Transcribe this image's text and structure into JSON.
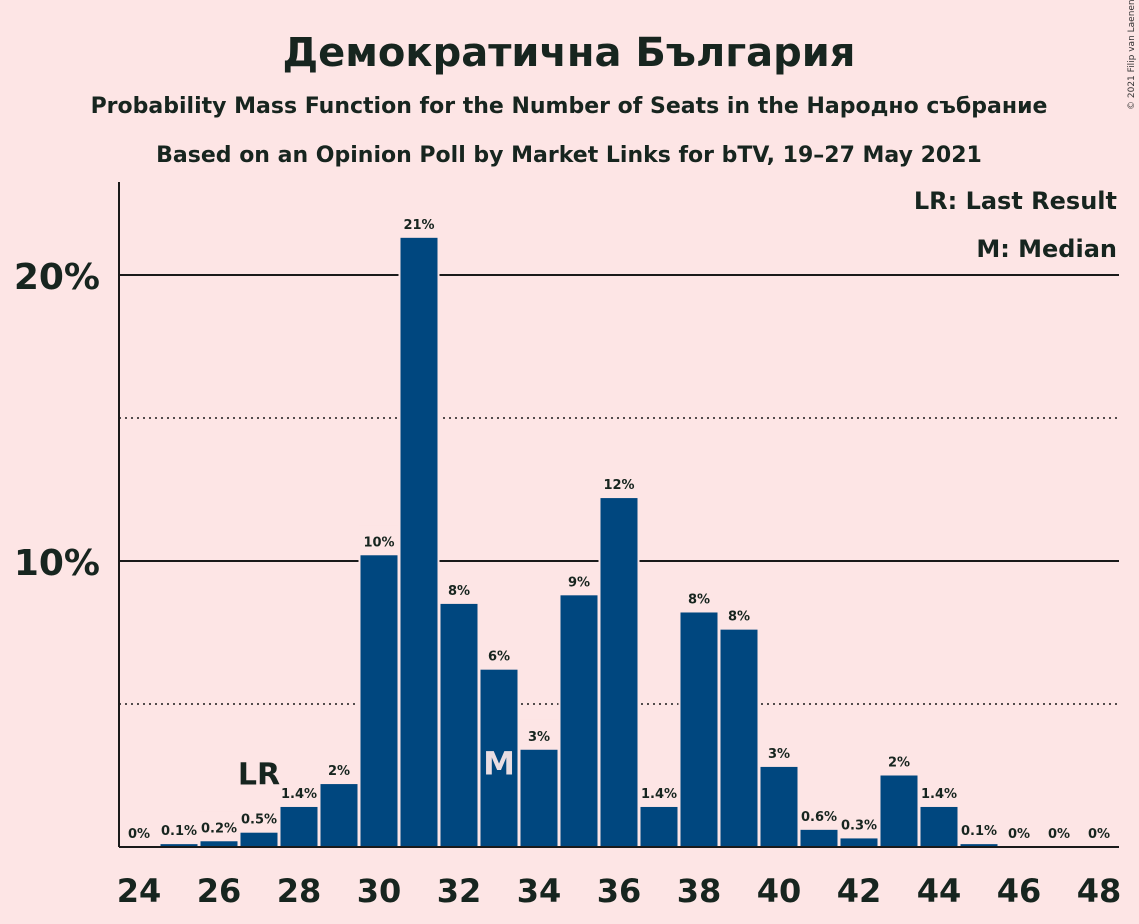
{
  "copyright": "© 2021 Filip van Laenen",
  "chart_data": {
    "type": "bar",
    "title": "Демократична България",
    "subtitle": "Probability Mass Function for the Number of Seats in the Народно събрание",
    "subtitle2": "Based on an Opinion Poll by Market Links for bTV, 19–27 May 2021",
    "x": [
      24,
      25,
      26,
      27,
      28,
      29,
      30,
      31,
      32,
      33,
      34,
      35,
      36,
      37,
      38,
      39,
      40,
      41,
      42,
      43,
      44,
      45,
      46,
      47,
      48
    ],
    "values": [
      0.0,
      0.1,
      0.2,
      0.5,
      1.4,
      2.2,
      10.2,
      21.3,
      8.5,
      6.2,
      3.4,
      8.8,
      12.2,
      1.4,
      8.2,
      7.6,
      2.8,
      0.6,
      0.3,
      2.5,
      1.4,
      0.1,
      0.0,
      0.0,
      0.0
    ],
    "data_labels": [
      "0%",
      "0.1%",
      "0.2%",
      "0.5%",
      "1.4%",
      "2%",
      "10%",
      "21%",
      "8%",
      "6%",
      "3%",
      "9%",
      "12%",
      "1.4%",
      "8%",
      "8%",
      "3%",
      "0.6%",
      "0.3%",
      "2%",
      "1.4%",
      "0.1%",
      "0%",
      "0%",
      "0%"
    ],
    "x_tick_labels": [
      "24",
      "26",
      "28",
      "30",
      "32",
      "34",
      "36",
      "38",
      "40",
      "42",
      "44",
      "46",
      "48"
    ],
    "y_tick_labels": [
      "10%",
      "20%"
    ],
    "ylim": [
      0,
      23
    ],
    "gridlines_solid": [
      10,
      20
    ],
    "gridlines_dotted": [
      5,
      15
    ],
    "bar_color": "#00477f",
    "last_result": {
      "x": 27,
      "marker": "LR"
    },
    "median": {
      "x": 33,
      "marker": "M"
    },
    "legend": [
      "LR: Last Result",
      "M: Median"
    ],
    "legend_position": "top-right"
  }
}
